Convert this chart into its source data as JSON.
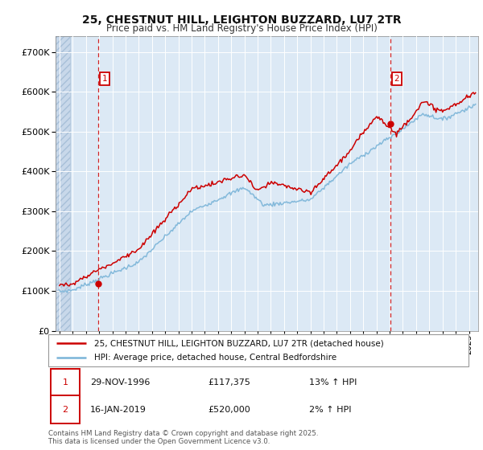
{
  "title1": "25, CHESTNUT HILL, LEIGHTON BUZZARD, LU7 2TR",
  "title2": "Price paid vs. HM Land Registry's House Price Index (HPI)",
  "ytick_vals": [
    0,
    100000,
    200000,
    300000,
    400000,
    500000,
    600000,
    700000
  ],
  "ylim": [
    0,
    740000
  ],
  "xlim_start": 1993.7,
  "xlim_end": 2025.7,
  "bg_color": "#dce9f5",
  "grid_color": "#ffffff",
  "hpi_color": "#7ab4d8",
  "price_color": "#cc0000",
  "marker1_x": 1996.91,
  "marker1_y": 117375,
  "marker2_x": 2019.04,
  "marker2_y": 520000,
  "legend_line1": "25, CHESTNUT HILL, LEIGHTON BUZZARD, LU7 2TR (detached house)",
  "legend_line2": "HPI: Average price, detached house, Central Bedfordshire",
  "ann1_date": "29-NOV-1996",
  "ann1_price": "£117,375",
  "ann1_hpi": "13% ↑ HPI",
  "ann2_date": "16-JAN-2019",
  "ann2_price": "£520,000",
  "ann2_hpi": "2% ↑ HPI",
  "footer": "Contains HM Land Registry data © Crown copyright and database right 2025.\nThis data is licensed under the Open Government Licence v3.0."
}
